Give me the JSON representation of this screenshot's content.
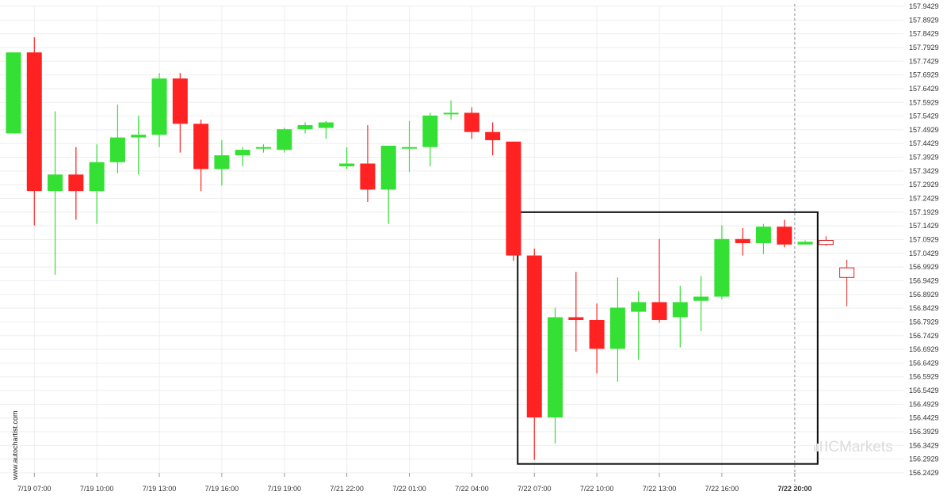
{
  "chart_data": {
    "type": "candlestick",
    "title": "",
    "xlabel": "",
    "ylabel": "",
    "ylim": [
      156.2429,
      157.9429
    ],
    "grid": true,
    "y_ticks": [
      "157.9429",
      "157.8929",
      "157.8429",
      "157.7929",
      "157.7429",
      "157.6929",
      "157.6429",
      "157.5929",
      "157.5429",
      "157.4929",
      "157.4429",
      "157.3929",
      "157.3429",
      "157.2929",
      "157.2429",
      "157.1929",
      "157.1429",
      "157.0929",
      "157.0429",
      "156.9929",
      "156.9429",
      "156.8929",
      "156.8429",
      "156.7929",
      "156.7429",
      "156.6929",
      "156.6429",
      "156.5929",
      "156.5429",
      "156.4929",
      "156.4429",
      "156.3929",
      "156.3429",
      "156.2929",
      "156.2429"
    ],
    "x_ticks": [
      {
        "label": "7/19 07:00",
        "index": 1
      },
      {
        "label": "7/19 10:00",
        "index": 4
      },
      {
        "label": "7/19 13:00",
        "index": 7
      },
      {
        "label": "7/19 16:00",
        "index": 10
      },
      {
        "label": "7/19 19:00",
        "index": 13
      },
      {
        "label": "7/21 22:00",
        "index": 16
      },
      {
        "label": "7/22 01:00",
        "index": 19
      },
      {
        "label": "7/22 04:00",
        "index": 22
      },
      {
        "label": "7/22 07:00",
        "index": 25
      },
      {
        "label": "7/22 10:00",
        "index": 28
      },
      {
        "label": "7/22 13:00",
        "index": 31
      },
      {
        "label": "7/22 16:00",
        "index": 34
      },
      {
        "label": "7/22 20:00",
        "index": 37.5,
        "bold": true
      }
    ],
    "candles": [
      {
        "o": 157.48,
        "h": 157.775,
        "l": 157.48,
        "c": 157.775
      },
      {
        "o": 157.775,
        "h": 157.83,
        "l": 157.145,
        "c": 157.27
      },
      {
        "o": 157.27,
        "h": 157.56,
        "l": 156.965,
        "c": 157.33
      },
      {
        "o": 157.33,
        "h": 157.43,
        "l": 157.165,
        "c": 157.27
      },
      {
        "o": 157.27,
        "h": 157.44,
        "l": 157.15,
        "c": 157.375
      },
      {
        "o": 157.375,
        "h": 157.585,
        "l": 157.335,
        "c": 157.465
      },
      {
        "o": 157.465,
        "h": 157.545,
        "l": 157.33,
        "c": 157.475
      },
      {
        "o": 157.475,
        "h": 157.7,
        "l": 157.43,
        "c": 157.68
      },
      {
        "o": 157.68,
        "h": 157.7,
        "l": 157.41,
        "c": 157.515
      },
      {
        "o": 157.515,
        "h": 157.53,
        "l": 157.27,
        "c": 157.35
      },
      {
        "o": 157.35,
        "h": 157.455,
        "l": 157.29,
        "c": 157.4
      },
      {
        "o": 157.4,
        "h": 157.43,
        "l": 157.36,
        "c": 157.42
      },
      {
        "o": 157.425,
        "h": 157.44,
        "l": 157.41,
        "c": 157.43
      },
      {
        "o": 157.42,
        "h": 157.5,
        "l": 157.41,
        "c": 157.495
      },
      {
        "o": 157.495,
        "h": 157.52,
        "l": 157.48,
        "c": 157.51
      },
      {
        "o": 157.5,
        "h": 157.525,
        "l": 157.46,
        "c": 157.52
      },
      {
        "o": 157.36,
        "h": 157.43,
        "l": 157.35,
        "c": 157.37
      },
      {
        "o": 157.37,
        "h": 157.51,
        "l": 157.23,
        "c": 157.275
      },
      {
        "o": 157.275,
        "h": 157.435,
        "l": 157.15,
        "c": 157.435
      },
      {
        "o": 157.43,
        "h": 157.525,
        "l": 157.34,
        "c": 157.43
      },
      {
        "o": 157.43,
        "h": 157.555,
        "l": 157.36,
        "c": 157.545
      },
      {
        "o": 157.55,
        "h": 157.6,
        "l": 157.53,
        "c": 157.555
      },
      {
        "o": 157.555,
        "h": 157.575,
        "l": 157.46,
        "c": 157.485
      },
      {
        "o": 157.485,
        "h": 157.52,
        "l": 157.4,
        "c": 157.455
      },
      {
        "o": 157.45,
        "h": 157.45,
        "l": 157.015,
        "c": 157.035
      },
      {
        "o": 157.035,
        "h": 157.06,
        "l": 156.29,
        "c": 156.445
      },
      {
        "o": 156.445,
        "h": 156.845,
        "l": 156.35,
        "c": 156.81
      },
      {
        "o": 156.81,
        "h": 156.975,
        "l": 156.685,
        "c": 156.8
      },
      {
        "o": 156.8,
        "h": 156.86,
        "l": 156.605,
        "c": 156.695
      },
      {
        "o": 156.695,
        "h": 156.955,
        "l": 156.575,
        "c": 156.845
      },
      {
        "o": 156.83,
        "h": 156.905,
        "l": 156.655,
        "c": 156.865
      },
      {
        "o": 156.865,
        "h": 157.095,
        "l": 156.79,
        "c": 156.8
      },
      {
        "o": 156.81,
        "h": 156.925,
        "l": 156.7,
        "c": 156.865
      },
      {
        "o": 156.87,
        "h": 156.96,
        "l": 156.76,
        "c": 156.885
      },
      {
        "o": 156.885,
        "h": 157.145,
        "l": 156.875,
        "c": 157.095
      },
      {
        "o": 157.095,
        "h": 157.135,
        "l": 157.035,
        "c": 157.08
      },
      {
        "o": 157.08,
        "h": 157.15,
        "l": 157.04,
        "c": 157.14
      },
      {
        "o": 157.14,
        "h": 157.165,
        "l": 157.065,
        "c": 157.075
      },
      {
        "o": 157.075,
        "h": 157.09,
        "l": 157.075,
        "c": 157.085
      }
    ],
    "projected_candles": [
      {
        "o": 157.09,
        "h": 157.105,
        "l": 157.07,
        "c": 157.075
      },
      {
        "o": 156.99,
        "h": 157.02,
        "l": 156.85,
        "c": 156.955
      }
    ],
    "highlight_box": {
      "from_index": 24.6,
      "to_index": 38.6,
      "y_top": 157.1929,
      "y_bottom": 156.2755
    },
    "current_time_marker_index": 37.5,
    "colors": {
      "up": "#33e033",
      "down": "#ff2222",
      "projected": "#dd2222",
      "grid": "#eeeeee",
      "box": "#111111",
      "marker": "#999999"
    }
  },
  "watermark": {
    "brand_prefix": "IC",
    "brand_suffix": "Markets"
  },
  "side_label": "www.autochartist.com"
}
